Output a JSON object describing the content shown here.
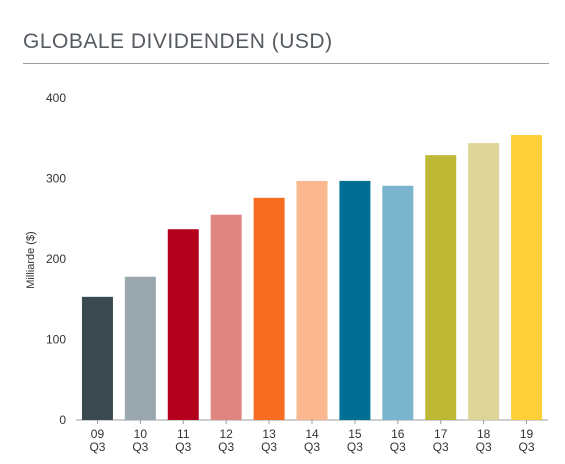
{
  "chart_data": {
    "type": "bar",
    "title": "GLOBALE DIVIDENDEN (USD)",
    "ylabel": "Milliarde ($)",
    "xlabel": "",
    "ylim": [
      0,
      400
    ],
    "yticks": [
      0,
      100,
      200,
      300,
      400
    ],
    "categories": [
      [
        "09",
        "Q3"
      ],
      [
        "10",
        "Q3"
      ],
      [
        "11",
        "Q3"
      ],
      [
        "12",
        "Q3"
      ],
      [
        "13",
        "Q3"
      ],
      [
        "14",
        "Q3"
      ],
      [
        "15",
        "Q3"
      ],
      [
        "16",
        "Q3"
      ],
      [
        "17",
        "Q3"
      ],
      [
        "18",
        "Q3"
      ],
      [
        "19",
        "Q3"
      ]
    ],
    "values": [
      153,
      178,
      237,
      255,
      276,
      297,
      297,
      291,
      329,
      344,
      354
    ],
    "colors": [
      "#3b4a50",
      "#9aa7ae",
      "#b5001d",
      "#e0857f",
      "#f96d23",
      "#fbb88e",
      "#006f93",
      "#7ab4cd",
      "#bdb935",
      "#ddd597",
      "#fdd03a"
    ],
    "grid": false,
    "legend": "none"
  }
}
